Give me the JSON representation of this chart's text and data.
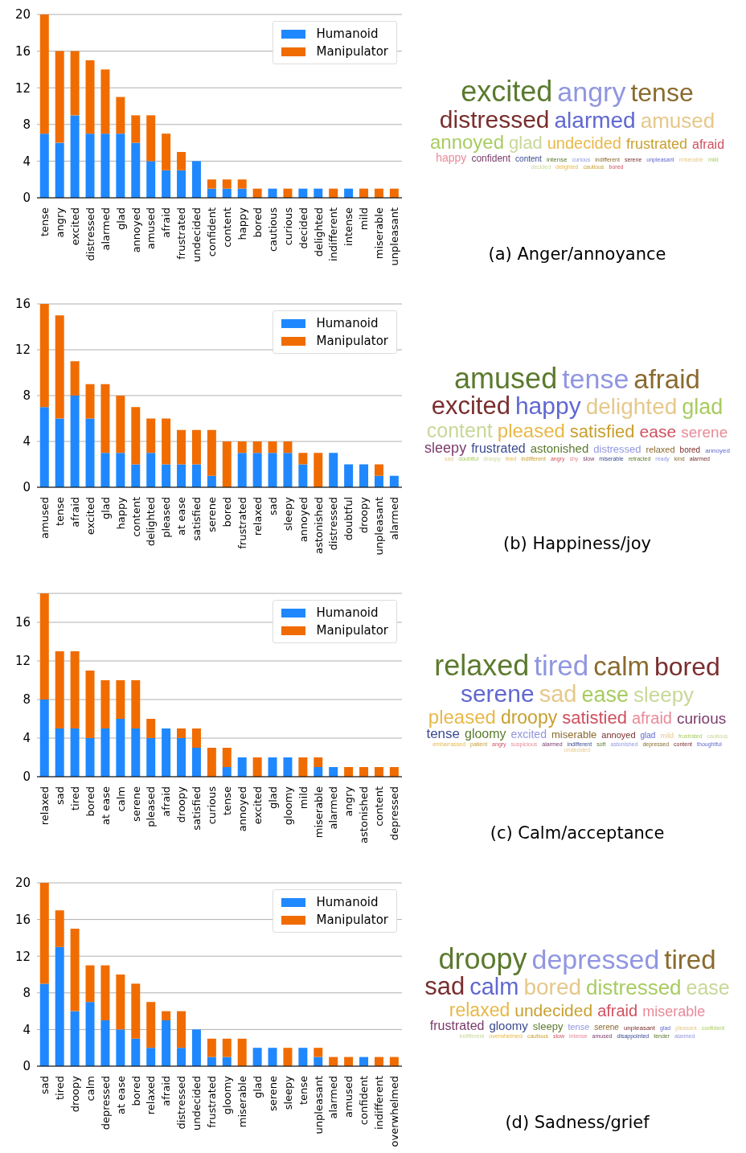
{
  "chart_data": [
    {
      "type": "bar",
      "stacked": true,
      "categories": [
        "tense",
        "angry",
        "excited",
        "distressed",
        "alarmed",
        "glad",
        "annoyed",
        "amused",
        "afraid",
        "frustrated",
        "undecided",
        "confident",
        "content",
        "happy",
        "bored",
        "cautious",
        "curious",
        "decided",
        "delighted",
        "indifferent",
        "intense",
        "mild",
        "miserable",
        "unpleasant"
      ],
      "series": [
        {
          "name": "Humanoid",
          "color": "#1f88fe",
          "values": [
            7,
            6,
            9,
            7,
            7,
            7,
            6,
            4,
            3,
            3,
            4,
            1,
            1,
            1,
            0,
            1,
            0,
            1,
            1,
            0,
            1,
            0,
            0,
            0
          ]
        },
        {
          "name": "Manipulator",
          "color": "#f06c00",
          "values": [
            13,
            10,
            7,
            8,
            7,
            4,
            3,
            5,
            4,
            2,
            0,
            1,
            1,
            1,
            1,
            0,
            1,
            0,
            0,
            1,
            0,
            1,
            1,
            1
          ]
        }
      ],
      "ylim": [
        0,
        20
      ],
      "yticks": [
        0,
        4,
        8,
        12,
        16,
        20
      ],
      "grid": "y",
      "legend": "top right"
    },
    {
      "type": "other",
      "title": "(a) Anger/annoyance",
      "annotations": [
        "excited",
        "angry",
        "tense",
        "distressed",
        "alarmed",
        "amused",
        "annoyed",
        "glad",
        "undecided",
        "frustrated",
        "afraid",
        "happy",
        "confident",
        "content",
        "intense",
        "curious",
        "indifferent",
        "serene",
        "unpleasant",
        "miserable",
        "mild",
        "decided",
        "delighted",
        "cautious",
        "bored"
      ]
    },
    {
      "type": "bar",
      "stacked": true,
      "categories": [
        "amused",
        "tense",
        "afraid",
        "excited",
        "glad",
        "happy",
        "content",
        "delighted",
        "pleased",
        "at ease",
        "satisfied",
        "serene",
        "bored",
        "frustrated",
        "relaxed",
        "sad",
        "sleepy",
        "annoyed",
        "astonished",
        "distressed",
        "doubtful",
        "droopy",
        "unpleasant",
        "alarmed"
      ],
      "series": [
        {
          "name": "Humanoid",
          "color": "#1f88fe",
          "values": [
            7,
            6,
            8,
            6,
            3,
            3,
            2,
            3,
            2,
            2,
            2,
            1,
            0,
            3,
            3,
            3,
            3,
            2,
            0,
            3,
            2,
            2,
            1,
            1
          ]
        },
        {
          "name": "Manipulator",
          "color": "#f06c00",
          "values": [
            9,
            9,
            3,
            3,
            6,
            5,
            5,
            3,
            4,
            3,
            3,
            4,
            4,
            1,
            1,
            1,
            1,
            1,
            3,
            0,
            0,
            0,
            1,
            0
          ]
        }
      ],
      "ylim": [
        0,
        16
      ],
      "yticks": [
        0,
        4,
        8,
        12,
        16
      ],
      "grid": "y",
      "legend": "top right"
    },
    {
      "type": "other",
      "title": "(b) Happiness/joy",
      "annotations": [
        "amused",
        "tense",
        "afraid",
        "excited",
        "happy",
        "delighted",
        "glad",
        "content",
        "pleased",
        "satisfied",
        "ease",
        "serene",
        "sleepy",
        "frustrated",
        "astonished",
        "distressed",
        "relaxed",
        "bored",
        "annoyed",
        "sad",
        "doubtful",
        "droopy",
        "tired",
        "indifferent",
        "angry",
        "shy",
        "slow",
        "miserable",
        "retracted",
        "ready",
        "kind",
        "alarmed"
      ]
    },
    {
      "type": "bar",
      "stacked": true,
      "categories": [
        "relaxed",
        "sad",
        "tired",
        "bored",
        "at ease",
        "calm",
        "serene",
        "pleased",
        "afraid",
        "droopy",
        "satisfied",
        "curious",
        "tense",
        "annoyed",
        "excited",
        "glad",
        "gloomy",
        "mild",
        "miserable",
        "alarmed",
        "angry",
        "astonished",
        "content",
        "depressed"
      ],
      "series": [
        {
          "name": "Humanoid",
          "color": "#1f88fe",
          "values": [
            8,
            5,
            5,
            4,
            5,
            6,
            5,
            4,
            5,
            4,
            3,
            0,
            1,
            2,
            0,
            2,
            2,
            0,
            1,
            1,
            0,
            0,
            0,
            0
          ]
        },
        {
          "name": "Manipulator",
          "color": "#f06c00",
          "values": [
            11,
            8,
            8,
            7,
            5,
            4,
            5,
            2,
            0,
            1,
            2,
            3,
            2,
            0,
            2,
            0,
            0,
            2,
            1,
            0,
            1,
            1,
            1,
            1
          ]
        }
      ],
      "ylim": [
        0,
        19
      ],
      "yticks": [
        0,
        4,
        8,
        12,
        16
      ],
      "grid": "y",
      "legend": "top right"
    },
    {
      "type": "other",
      "title": "(c) Calm/acceptance",
      "annotations": [
        "relaxed",
        "tired",
        "calm",
        "bored",
        "serene",
        "sad",
        "ease",
        "sleepy",
        "pleased",
        "droopy",
        "satistied",
        "afraid",
        "curious",
        "tense",
        "gloomy",
        "excited",
        "miserable",
        "annoyed",
        "glad",
        "mild",
        "frustrated",
        "cautious",
        "embarrassed",
        "patient",
        "angry",
        "suspicious",
        "alarmed",
        "indifferent",
        "soft",
        "astonished",
        "depressed",
        "content",
        "thoughtful",
        "undecided"
      ]
    },
    {
      "type": "bar",
      "stacked": true,
      "categories": [
        "sad",
        "tired",
        "droopy",
        "calm",
        "depressed",
        "at ease",
        "bored",
        "relaxed",
        "afraid",
        "distressed",
        "undecided",
        "frustrated",
        "gloomy",
        "miserable",
        "glad",
        "serene",
        "sleepy",
        "tense",
        "unpleasant",
        "alarmed",
        "amused",
        "confident",
        "indifferent",
        "overwhelmed"
      ],
      "series": [
        {
          "name": "Humanoid",
          "color": "#1f88fe",
          "values": [
            9,
            13,
            6,
            7,
            5,
            4,
            3,
            2,
            5,
            2,
            4,
            1,
            1,
            0,
            2,
            2,
            0,
            2,
            1,
            0,
            0,
            1,
            0,
            0
          ]
        },
        {
          "name": "Manipulator",
          "color": "#f06c00",
          "values": [
            11,
            4,
            9,
            4,
            6,
            6,
            6,
            5,
            1,
            4,
            0,
            2,
            2,
            3,
            0,
            0,
            2,
            0,
            1,
            1,
            1,
            0,
            1,
            1
          ]
        }
      ],
      "ylim": [
        0,
        20
      ],
      "yticks": [
        0,
        4,
        8,
        12,
        16,
        20
      ],
      "grid": "y",
      "legend": "top right"
    },
    {
      "type": "other",
      "title": "(d) Sadness/grief",
      "annotations": [
        "droopy",
        "depressed",
        "tired",
        "sad",
        "calm",
        "bored",
        "distressed",
        "ease",
        "relaxed",
        "undecided",
        "afraid",
        "miserable",
        "frustrated",
        "gloomy",
        "sleepy",
        "tense",
        "serene",
        "unpleasant",
        "glad",
        "pleasant",
        "confident",
        "indifferent",
        "overwhelmed",
        "cautious",
        "slow",
        "intense",
        "amused",
        "disappointed",
        "tender",
        "alarmed"
      ]
    }
  ]
}
